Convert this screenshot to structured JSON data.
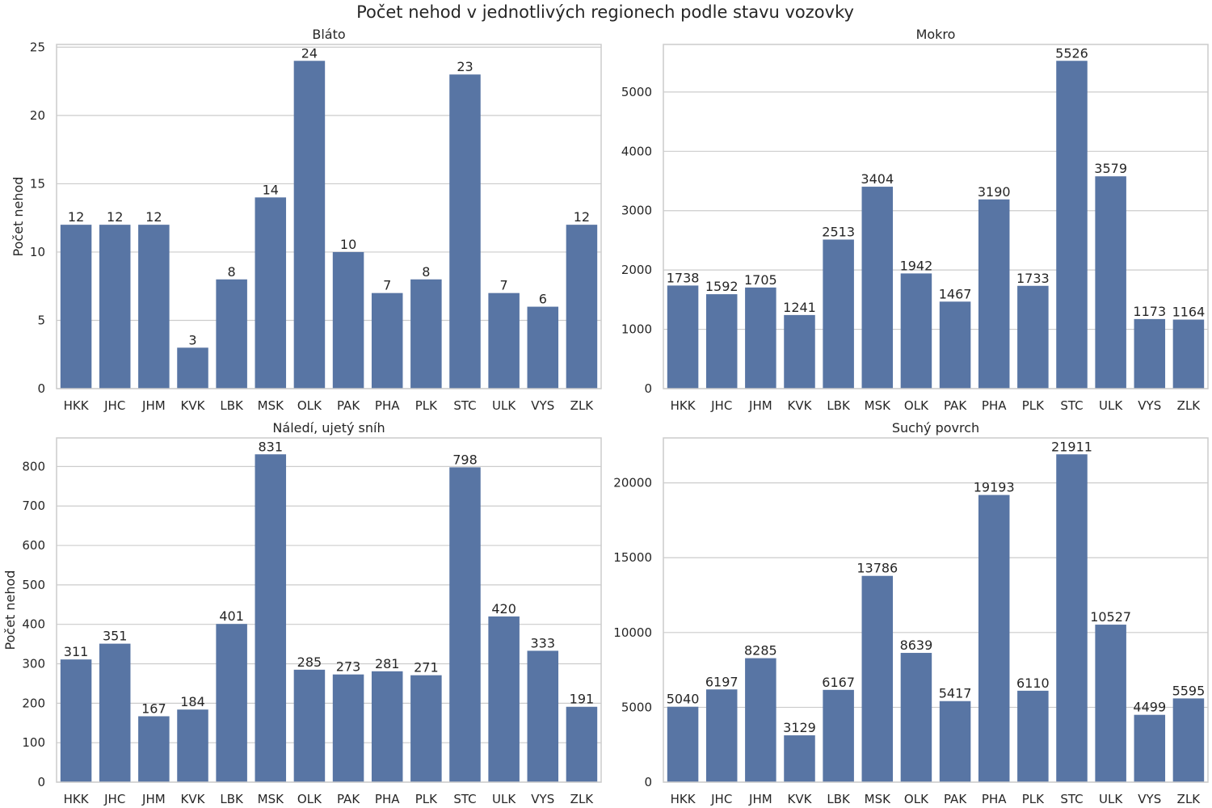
{
  "figure_title": "Počet nehod v jednotlivých regionech podle stavu vozovky",
  "colors": {
    "bar": "#5875a4",
    "grid": "#cccccc",
    "text": "#262626"
  },
  "chart_data": [
    {
      "type": "bar",
      "title": "Bláto",
      "xlabel": "",
      "ylabel": "Počet nehod",
      "categories": [
        "HKK",
        "JHC",
        "JHM",
        "KVK",
        "LBK",
        "MSK",
        "OLK",
        "PAK",
        "PHA",
        "PLK",
        "STC",
        "ULK",
        "VYS",
        "ZLK"
      ],
      "values": [
        12,
        12,
        12,
        3,
        8,
        14,
        24,
        10,
        7,
        8,
        23,
        7,
        6,
        12
      ],
      "yticks": [
        0,
        5,
        10,
        15,
        20,
        25
      ],
      "ylim": [
        0,
        25.2
      ],
      "grid": true
    },
    {
      "type": "bar",
      "title": "Mokro",
      "xlabel": "",
      "ylabel": "",
      "categories": [
        "HKK",
        "JHC",
        "JHM",
        "KVK",
        "LBK",
        "MSK",
        "OLK",
        "PAK",
        "PHA",
        "PLK",
        "STC",
        "ULK",
        "VYS",
        "ZLK"
      ],
      "values": [
        1738,
        1592,
        1705,
        1241,
        2513,
        3404,
        1942,
        1467,
        3190,
        1733,
        5526,
        3579,
        1173,
        1164
      ],
      "yticks": [
        0,
        1000,
        2000,
        3000,
        4000,
        5000
      ],
      "ylim": [
        0,
        5802
      ],
      "grid": true
    },
    {
      "type": "bar",
      "title": "Náledí, ujetý sníh",
      "xlabel": "",
      "ylabel": "Počet nehod",
      "categories": [
        "HKK",
        "JHC",
        "JHM",
        "KVK",
        "LBK",
        "MSK",
        "OLK",
        "PAK",
        "PHA",
        "PLK",
        "STC",
        "ULK",
        "VYS",
        "ZLK"
      ],
      "values": [
        311,
        351,
        167,
        184,
        401,
        831,
        285,
        273,
        281,
        271,
        798,
        420,
        333,
        191
      ],
      "yticks": [
        0,
        100,
        200,
        300,
        400,
        500,
        600,
        700,
        800
      ],
      "ylim": [
        0,
        872.5
      ],
      "grid": true
    },
    {
      "type": "bar",
      "title": "Suchý povrch",
      "xlabel": "",
      "ylabel": "",
      "categories": [
        "HKK",
        "JHC",
        "JHM",
        "KVK",
        "LBK",
        "MSK",
        "OLK",
        "PAK",
        "PHA",
        "PLK",
        "STC",
        "ULK",
        "VYS",
        "ZLK"
      ],
      "values": [
        5040,
        6197,
        8285,
        3129,
        6167,
        13786,
        8639,
        5417,
        19193,
        6110,
        21911,
        10527,
        4499,
        5595
      ],
      "yticks": [
        0,
        5000,
        10000,
        15000,
        20000
      ],
      "ylim": [
        0,
        23006
      ],
      "grid": true
    }
  ]
}
